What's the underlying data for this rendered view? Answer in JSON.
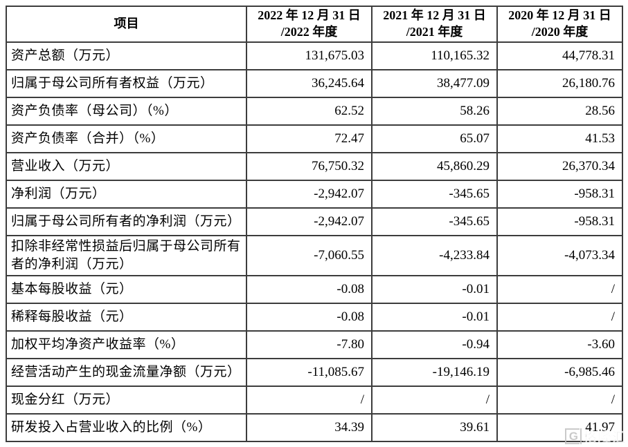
{
  "table": {
    "border_color": "#3c3c3c",
    "header": {
      "item": "项目",
      "columns": [
        {
          "line1": "2022 年 12 月 31 日",
          "line2": "/2022 年度"
        },
        {
          "line1": "2021 年 12 月 31 日",
          "line2": "/2021 年度"
        },
        {
          "line1": "2020 年 12 月 31 日",
          "line2": "/2020 年度"
        }
      ]
    },
    "rows": [
      {
        "label": "资产总额（万元）",
        "values": [
          "131,675.03",
          "110,165.32",
          "44,778.31"
        ]
      },
      {
        "label": "归属于母公司所有者权益（万元）",
        "values": [
          "36,245.64",
          "38,477.09",
          "26,180.76"
        ]
      },
      {
        "label": "资产负债率（母公司）（%）",
        "values": [
          "62.52",
          "58.26",
          "28.56"
        ]
      },
      {
        "label": "资产负债率（合并）（%）",
        "values": [
          "72.47",
          "65.07",
          "41.53"
        ]
      },
      {
        "label": "营业收入（万元）",
        "values": [
          "76,750.32",
          "45,860.29",
          "26,370.34"
        ]
      },
      {
        "label": "净利润（万元）",
        "values": [
          "-2,942.07",
          "-345.65",
          "-958.31"
        ]
      },
      {
        "label": "归属于母公司所有者的净利润（万元）",
        "values": [
          "-2,942.07",
          "-345.65",
          "-958.31"
        ]
      },
      {
        "label": "扣除非经常性损益后归属于母公司所有者的净利润（万元）",
        "values": [
          "-7,060.55",
          "-4,233.84",
          "-4,073.34"
        ]
      },
      {
        "label": "基本每股收益（元）",
        "values": [
          "-0.08",
          "-0.01",
          "/"
        ]
      },
      {
        "label": "稀释每股收益（元）",
        "values": [
          "-0.08",
          "-0.01",
          "/"
        ]
      },
      {
        "label": "加权平均净资产收益率（%）",
        "values": [
          "-7.80",
          "-0.94",
          "-3.60"
        ]
      },
      {
        "label": "经营活动产生的现金流量净额（万元）",
        "values": [
          "-11,085.67",
          "-19,146.19",
          "-6,985.46"
        ]
      },
      {
        "label": "现金分红（万元）",
        "values": [
          "/",
          "/",
          "/"
        ]
      },
      {
        "label": "研发投入占营业收入的比例（%）",
        "values": [
          "34.39",
          "39.61",
          "41.97"
        ]
      }
    ]
  },
  "watermark": {
    "logo": "G",
    "text": "格隆汇",
    "color": "#bdbdbd"
  }
}
